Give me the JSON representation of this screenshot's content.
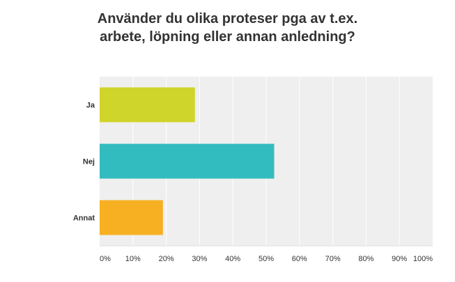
{
  "chart_data": {
    "type": "bar",
    "orientation": "horizontal",
    "title_lines": [
      "Använder du olika proteser pga av t.ex.",
      "arbete, löpning eller annan anledning?"
    ],
    "categories": [
      "Ja",
      "Nej",
      "Annat"
    ],
    "values": [
      28.6,
      52.4,
      19.0
    ],
    "x_ticks": [
      "0%",
      "10%",
      "20%",
      "30%",
      "40%",
      "50%",
      "60%",
      "70%",
      "80%",
      "90%",
      "100%"
    ],
    "xlim": [
      0,
      100
    ],
    "grid": true,
    "colors": [
      "#cfd52a",
      "#33bcbf",
      "#f7b022"
    ],
    "plot_background": "#efefef",
    "grid_color": "#ffffff"
  }
}
